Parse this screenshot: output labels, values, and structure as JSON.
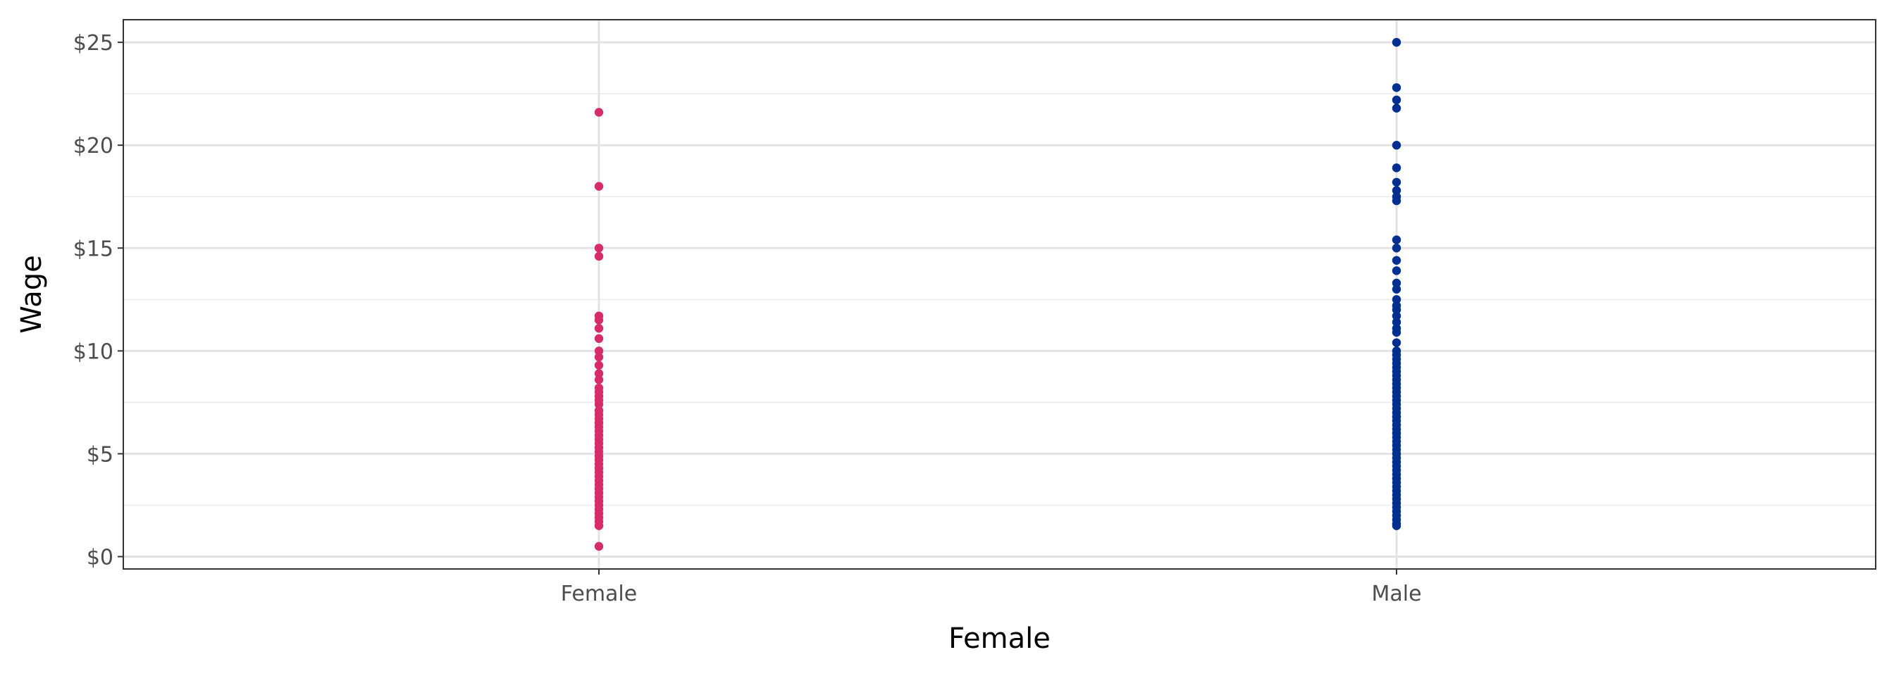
{
  "chart_data": {
    "type": "scatter",
    "title": "",
    "xlabel": "Female",
    "ylabel": "Wage",
    "categories": [
      "Female",
      "Male"
    ],
    "ylim": [
      -0.6,
      26.1
    ],
    "y_ticks": [
      0,
      5,
      10,
      15,
      20,
      25
    ],
    "y_tick_labels": [
      "$0",
      "$5",
      "$10",
      "$15",
      "$20",
      "$25"
    ],
    "grid": true,
    "legend": "none",
    "colors": {
      "Female": "#d62d6a",
      "Male": "#002f8f"
    },
    "series": [
      {
        "category": "Female",
        "values": [
          21.6,
          18.0,
          15.0,
          14.6,
          11.7,
          11.5,
          11.1,
          10.6,
          10.0,
          9.7,
          9.3,
          8.9,
          8.6,
          8.2,
          8.0,
          7.8,
          7.6,
          7.4,
          7.1,
          6.9,
          6.7,
          6.5,
          6.3,
          6.1,
          5.9,
          5.7,
          5.5,
          5.3,
          5.1,
          4.9,
          4.7,
          4.5,
          4.3,
          4.1,
          3.9,
          3.7,
          3.5,
          3.3,
          3.1,
          2.9,
          2.7,
          2.5,
          2.3,
          2.1,
          1.9,
          1.7,
          1.5,
          0.5
        ]
      },
      {
        "category": "Male",
        "values": [
          25.0,
          22.8,
          22.2,
          21.8,
          20.0,
          18.9,
          18.2,
          17.8,
          17.5,
          17.3,
          15.4,
          15.0,
          14.4,
          13.9,
          13.3,
          13.0,
          12.5,
          12.2,
          12.0,
          11.7,
          11.4,
          11.1,
          10.9,
          10.4,
          10.0,
          9.8,
          9.6,
          9.4,
          9.2,
          9.0,
          8.8,
          8.6,
          8.4,
          8.2,
          8.0,
          7.8,
          7.6,
          7.4,
          7.2,
          7.0,
          6.8,
          6.6,
          6.4,
          6.2,
          6.0,
          5.8,
          5.6,
          5.4,
          5.2,
          5.0,
          4.8,
          4.6,
          4.4,
          4.2,
          4.0,
          3.8,
          3.6,
          3.4,
          3.2,
          3.0,
          2.8,
          2.6,
          2.4,
          2.2,
          2.0,
          1.8,
          1.6,
          1.5
        ]
      }
    ]
  }
}
